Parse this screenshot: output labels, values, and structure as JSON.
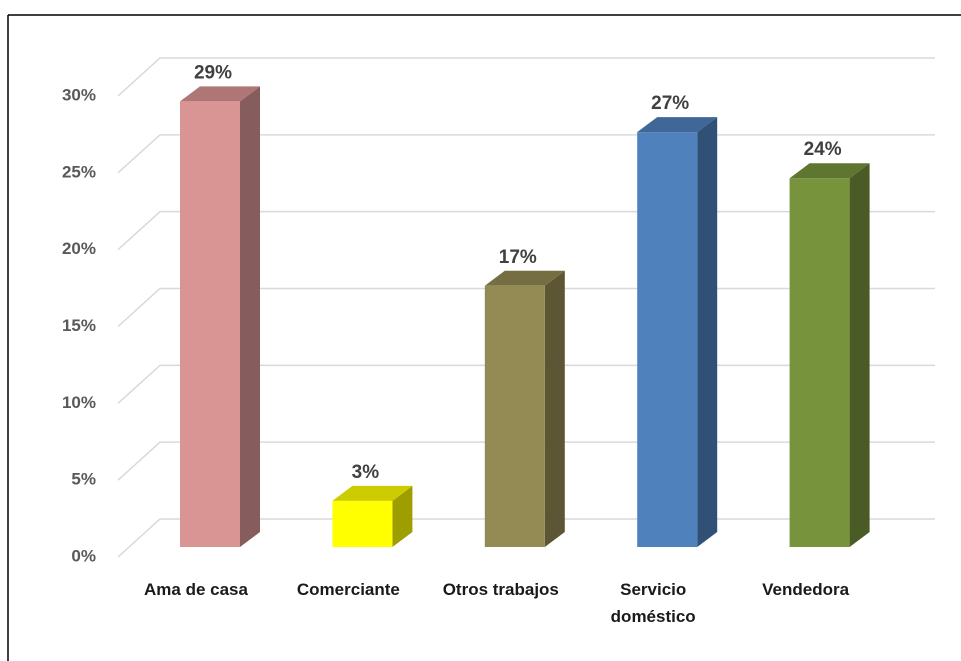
{
  "chart_data": {
    "type": "bar3d",
    "categories": [
      "Ama de casa",
      "Comerciante",
      "Otros trabajos",
      "Servicio doméstico",
      "Vendedora"
    ],
    "values": [
      29,
      3,
      17,
      27,
      24
    ],
    "value_labels": [
      "29%",
      "3%",
      "17%",
      "27%",
      "24%"
    ],
    "colors": [
      "#d99594",
      "#ffff00",
      "#948a54",
      "#4f81bd",
      "#77933c"
    ],
    "ylim": [
      0,
      30
    ],
    "yticks": [
      {
        "value": 0,
        "label": "0%"
      },
      {
        "value": 5,
        "label": "5%"
      },
      {
        "value": 10,
        "label": "10%"
      },
      {
        "value": 15,
        "label": "15%"
      },
      {
        "value": 20,
        "label": "20%"
      },
      {
        "value": 25,
        "label": "25%"
      },
      {
        "value": 30,
        "label": "30%"
      }
    ],
    "grid": true
  }
}
